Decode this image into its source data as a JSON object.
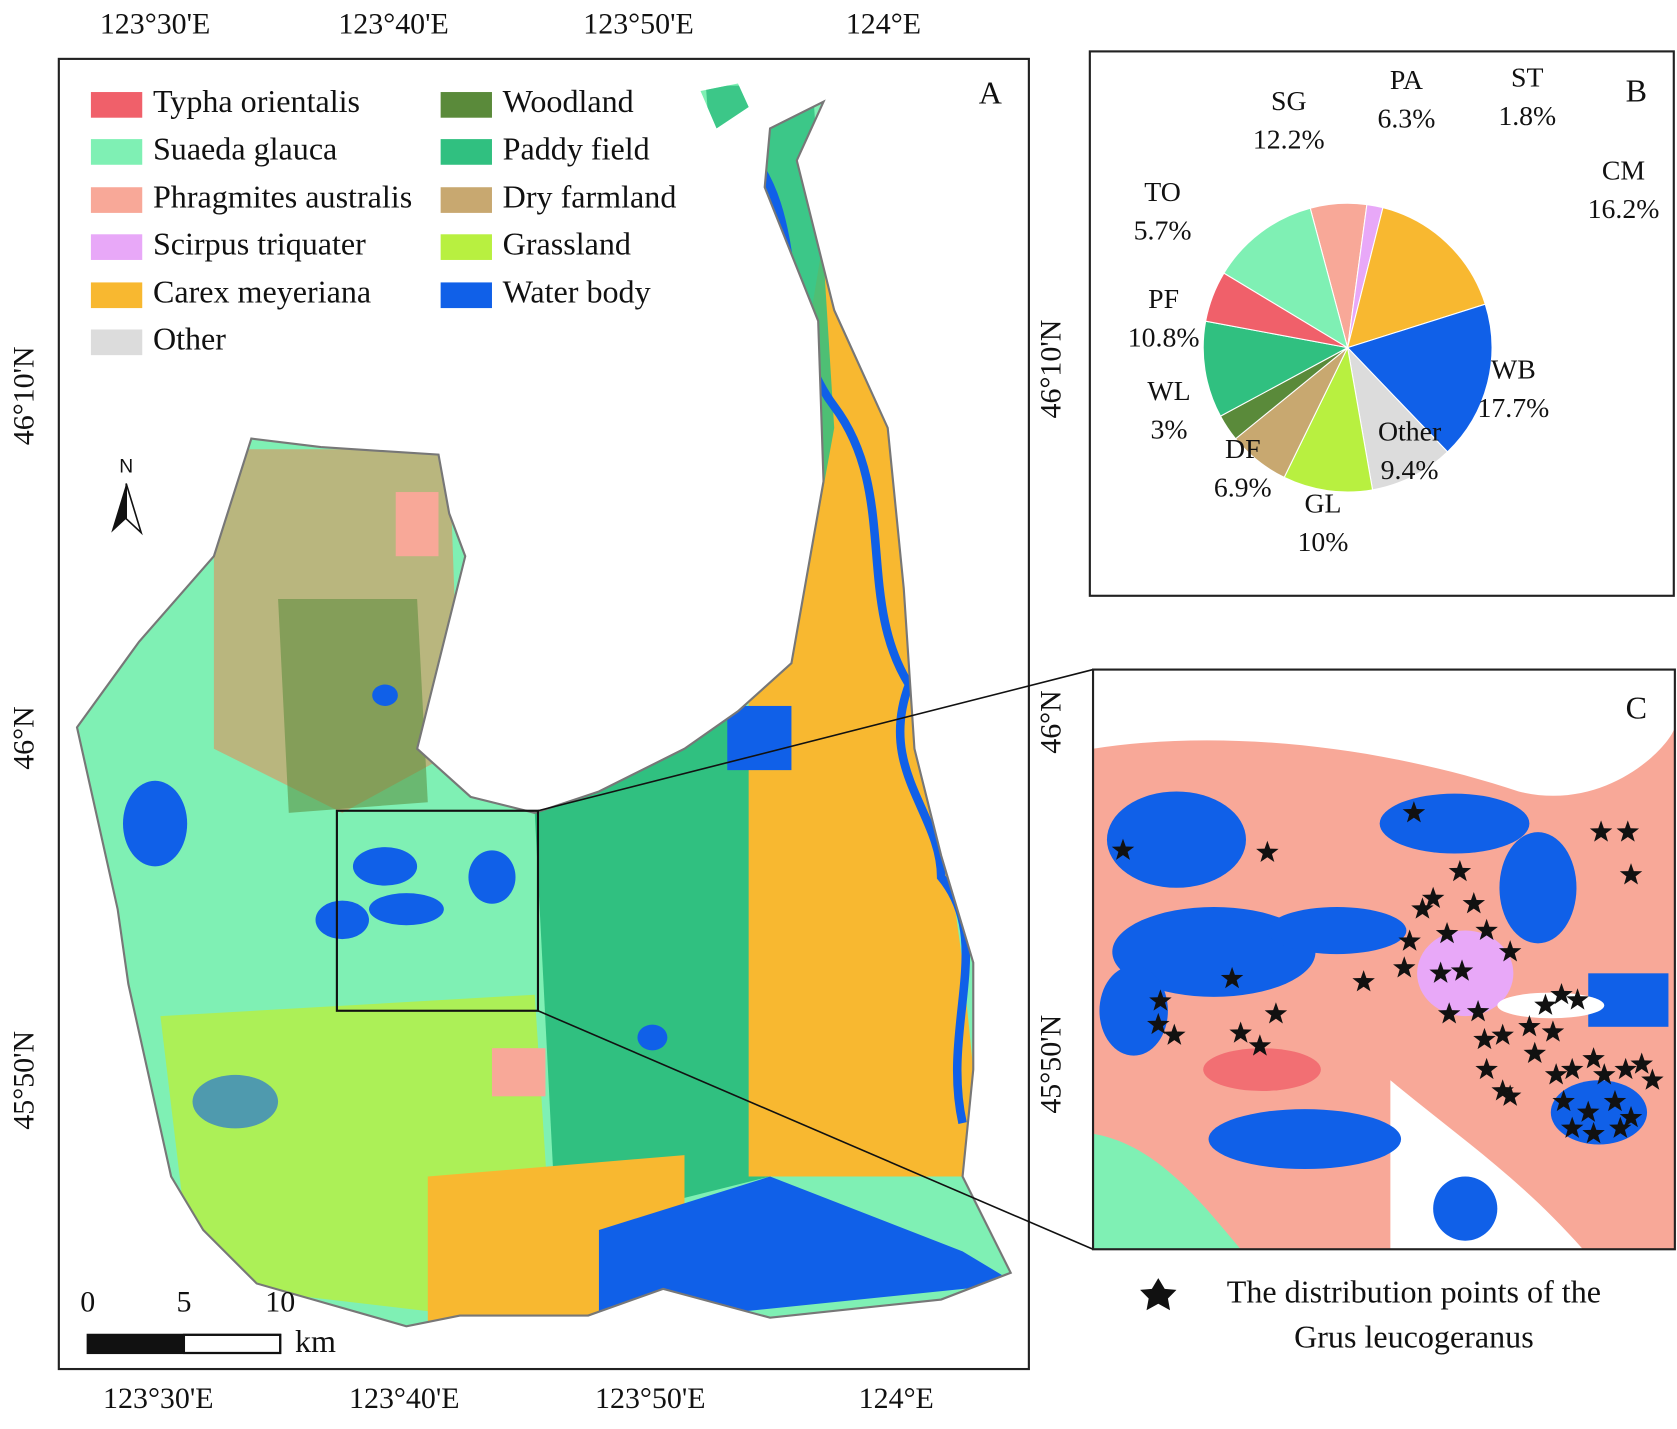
{
  "map": {
    "panel_label": "A",
    "legend": [
      {
        "name": "Typha orientalis",
        "color": "#f0606a"
      },
      {
        "name": "Suaeda glauca",
        "color": "#7ff0b4"
      },
      {
        "name": "Phragmites australis",
        "color": "#f8a898"
      },
      {
        "name": "Scirpus triquater",
        "color": "#e8a8f8"
      },
      {
        "name": "Carex meyeriana",
        "color": "#f8b830"
      },
      {
        "name": "Other",
        "color": "#dcdcdc"
      },
      {
        "name": "Woodland",
        "color": "#5a8a3a"
      },
      {
        "name": "Paddy field",
        "color": "#30c080"
      },
      {
        "name": "Dry farmland",
        "color": "#c8a870"
      },
      {
        "name": "Grassland",
        "color": "#b8f040"
      },
      {
        "name": "Water body",
        "color": "#1060e8"
      }
    ],
    "top_ticks": [
      "123°30'E",
      "123°40'E",
      "123°50'E",
      "124°E"
    ],
    "bottom_ticks": [
      "123°30'E",
      "123°40'E",
      "123°50'E",
      "124°E"
    ],
    "left_ticks": [
      "46°10'N",
      "46°N",
      "45°50'N"
    ],
    "right_ticks": [
      "46°10'N",
      "46°N",
      "45°50'N"
    ],
    "north": "N",
    "scale": {
      "ticks": [
        0,
        5,
        10
      ],
      "unit": "km"
    }
  },
  "chart_data": {
    "type": "pie",
    "panel_label": "B",
    "categories": [
      "PA",
      "ST",
      "CM",
      "WB",
      "Other",
      "GL",
      "DF",
      "WL",
      "PF",
      "TO",
      "SG"
    ],
    "values": [
      6.3,
      1.8,
      16.2,
      17.7,
      9.4,
      10,
      6.9,
      3,
      10.8,
      5.7,
      12.2
    ],
    "value_labels": [
      "6.3%",
      "1.8%",
      "16.2%",
      "17.7%",
      "9.4%",
      "10%",
      "6.9%",
      "3%",
      "10.8%",
      "5.7%",
      "12.2%"
    ],
    "colors": [
      "#f8a898",
      "#e8a8f8",
      "#f8b830",
      "#1060e8",
      "#dcdcdc",
      "#b8f040",
      "#c8a870",
      "#5a8a3a",
      "#30c080",
      "#f0606a",
      "#7ff0b4"
    ]
  },
  "inset": {
    "panel_label": "C",
    "note_lines": [
      "The distribution points of the",
      "Grus leucogeranus"
    ]
  }
}
